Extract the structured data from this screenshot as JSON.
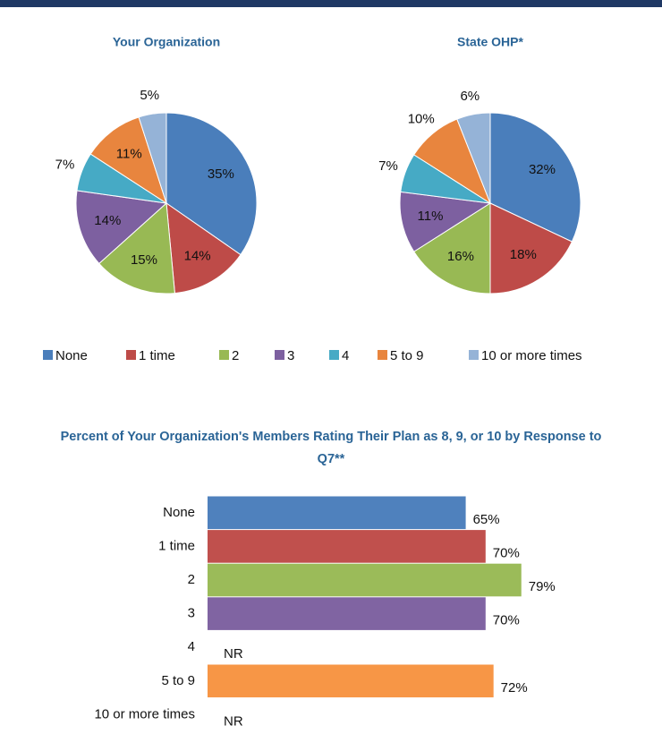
{
  "chart_data": [
    {
      "type": "pie",
      "title": "Your Organization",
      "categories": [
        "None",
        "1 time",
        "2",
        "3",
        "4",
        "5 to 9",
        "10 or more times"
      ],
      "values": [
        35,
        14,
        15,
        14,
        7,
        11,
        5
      ],
      "value_labels": [
        "35%",
        "14%",
        "15%",
        "14%",
        "7%",
        "11%",
        "5%"
      ],
      "colors": [
        "#4a7ebb",
        "#be4b48",
        "#98b954",
        "#7d60a0",
        "#46aac5",
        "#e8853e",
        "#95b3d7"
      ],
      "legend": "bottom"
    },
    {
      "type": "pie",
      "title": "State OHP*",
      "categories": [
        "None",
        "1 time",
        "2",
        "3",
        "4",
        "5 to 9",
        "10 or more times"
      ],
      "values": [
        32,
        18,
        16,
        11,
        7,
        10,
        6
      ],
      "value_labels": [
        "32%",
        "18%",
        "16%",
        "11%",
        "7%",
        "10%",
        "6%"
      ],
      "colors": [
        "#4a7ebb",
        "#be4b48",
        "#98b954",
        "#7d60a0",
        "#46aac5",
        "#e8853e",
        "#95b3d7"
      ]
    },
    {
      "type": "hbar",
      "title": "Percent of Your Organization's Members Rating Their Plan as 8, 9, or 10 by Response to Q7**",
      "categories": [
        "None",
        "1 time",
        "2",
        "3",
        "4",
        "5 to 9",
        "10 or more times"
      ],
      "values": [
        65,
        70,
        79,
        70,
        null,
        72,
        null
      ],
      "value_labels": [
        "65%",
        "70%",
        "79%",
        "70%",
        "NR",
        "72%",
        "NR"
      ],
      "colors": [
        "#4f81bd",
        "#c0504d",
        "#9bbb59",
        "#8064a2",
        "#4bacc6",
        "#f79646",
        "#95b3d7"
      ],
      "xlim": [
        0,
        100
      ]
    }
  ]
}
